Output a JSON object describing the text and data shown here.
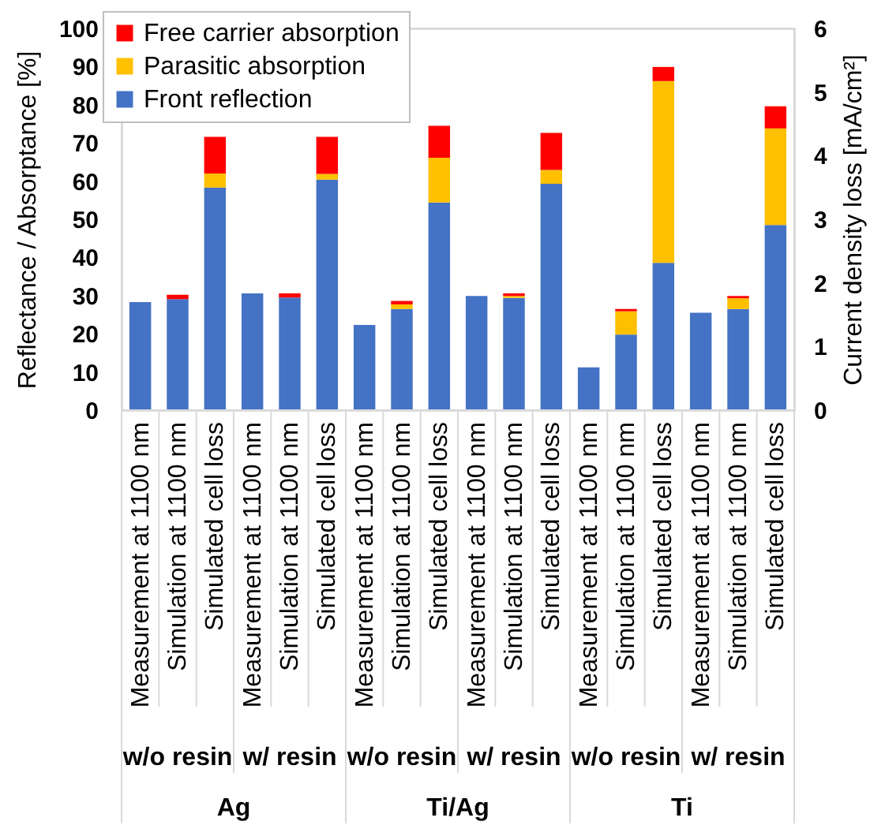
{
  "chart_data": {
    "type": "bar",
    "stacked": true,
    "ylabel": "Reflectance / Absorptance [%]",
    "y2label": "Current density loss [mA/cm²]",
    "categories": [
      "Measurement at 1100 nm",
      "Simulation at 1100 nm",
      "Simulated cell loss",
      "Measurement at 1100 nm",
      "Simulation at 1100 nm",
      "Simulated cell loss",
      "Measurement at 1100 nm",
      "Simulation at 1100 nm",
      "Simulated cell loss",
      "Measurement at 1100 nm",
      "Simulation at 1100 nm",
      "Simulated cell loss",
      "Measurement at 1100 nm",
      "Simulation at 1100 nm",
      "Simulated cell loss",
      "Measurement at 1100 nm",
      "Simulation at 1100 nm",
      "Simulated cell loss"
    ],
    "series": [
      {
        "name": "Front reflection",
        "color": "#4472c4",
        "values": [
          28.3,
          29.1,
          58.3,
          30.6,
          29.5,
          60.4,
          22.3,
          26.5,
          54.4,
          29.9,
          29.4,
          59.3,
          11.2,
          19.8,
          38.6,
          25.5,
          26.5,
          48.5
        ]
      },
      {
        "name": "Parasitic absorption",
        "color": "#ffc000",
        "values": [
          null,
          null,
          3.7,
          null,
          null,
          1.5,
          null,
          1.2,
          11.7,
          null,
          0.5,
          3.6,
          null,
          6.1,
          47.6,
          null,
          2.8,
          25.3
        ]
      },
      {
        "name": "Free carrier absorption",
        "color": "#ff0000",
        "values": [
          null,
          1.1,
          9.6,
          null,
          1.1,
          9.7,
          null,
          0.9,
          8.4,
          null,
          0.7,
          9.7,
          null,
          0.6,
          3.7,
          null,
          0.6,
          5.8
        ]
      }
    ],
    "ylim": [
      0,
      100
    ],
    "yticks": [
      0,
      10,
      20,
      30,
      40,
      50,
      60,
      70,
      80,
      90,
      100
    ],
    "y2lim": [
      0,
      6
    ],
    "y2ticks": [
      0,
      1,
      2,
      3,
      4,
      5,
      6
    ],
    "legend": "top left",
    "annotations": [
      "w/o resin",
      "w/ resin",
      "w/o resin",
      "w/ resin",
      "w/o resin",
      "w/ resin",
      "Ag",
      "Ti/Ag",
      "Ti"
    ]
  }
}
